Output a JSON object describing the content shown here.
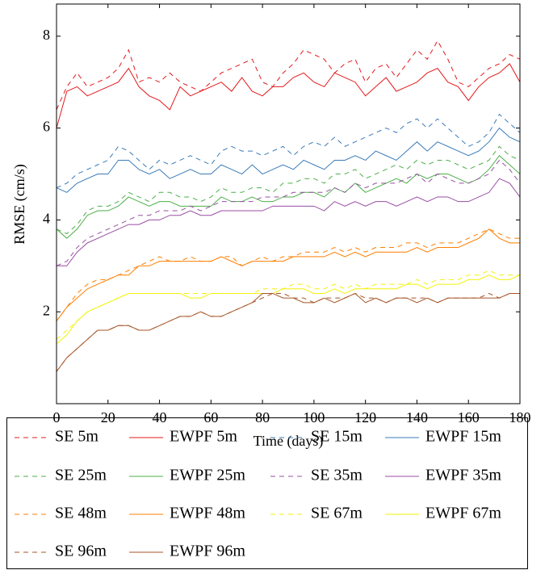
{
  "chart_data": {
    "type": "line",
    "x_label": "Time (days)",
    "y_label": "RMSE (cm/s)",
    "xlim": [
      0,
      180
    ],
    "ylim": [
      0,
      8.7
    ],
    "xticks": [
      0,
      20,
      40,
      60,
      80,
      100,
      120,
      140,
      160,
      180
    ],
    "yticks": [
      2,
      4,
      6,
      8
    ],
    "legend_columns": 4,
    "x": [
      0,
      4,
      8,
      12,
      16,
      20,
      24,
      28,
      32,
      36,
      40,
      44,
      48,
      52,
      56,
      60,
      64,
      68,
      72,
      76,
      80,
      84,
      88,
      92,
      96,
      100,
      104,
      108,
      112,
      116,
      120,
      124,
      128,
      132,
      136,
      140,
      144,
      148,
      152,
      156,
      160,
      164,
      168,
      172,
      176,
      180
    ],
    "series": [
      {
        "name": "SE 5m",
        "color": "#e31a1c",
        "dash": "dashed",
        "values": [
          6.4,
          6.9,
          7.2,
          6.9,
          7.0,
          7.1,
          7.3,
          7.7,
          7.0,
          7.1,
          7.0,
          7.2,
          7.0,
          6.9,
          6.8,
          7.0,
          7.2,
          7.3,
          7.4,
          7.5,
          7.0,
          6.9,
          7.2,
          7.4,
          7.7,
          7.6,
          7.5,
          7.2,
          7.4,
          7.5,
          7.0,
          7.3,
          7.4,
          7.1,
          7.4,
          7.7,
          7.5,
          7.9,
          7.5,
          7.0,
          6.9,
          7.1,
          7.3,
          7.4,
          7.6,
          7.5
        ]
      },
      {
        "name": "EWPF 5m",
        "color": "#e31a1c",
        "dash": "solid",
        "values": [
          6.0,
          6.8,
          6.9,
          6.7,
          6.8,
          6.9,
          7.0,
          7.3,
          6.9,
          6.7,
          6.6,
          6.4,
          6.9,
          6.7,
          6.8,
          6.9,
          7.0,
          6.8,
          7.1,
          6.8,
          6.7,
          6.9,
          6.9,
          7.1,
          7.2,
          7.0,
          6.9,
          7.2,
          7.1,
          7.0,
          6.7,
          6.9,
          7.1,
          6.8,
          6.9,
          7.0,
          7.2,
          7.3,
          7.0,
          6.9,
          6.6,
          6.9,
          7.1,
          7.2,
          7.4,
          7.0
        ]
      },
      {
        "name": "SE 15m",
        "color": "#3a7bb8",
        "dash": "dashed",
        "values": [
          4.7,
          4.8,
          5.0,
          5.1,
          5.2,
          5.3,
          5.6,
          5.5,
          5.3,
          5.1,
          5.3,
          5.2,
          5.3,
          5.4,
          5.3,
          5.2,
          5.5,
          5.6,
          5.5,
          5.5,
          5.4,
          5.5,
          5.6,
          5.4,
          5.6,
          5.7,
          5.6,
          5.8,
          5.6,
          5.7,
          5.8,
          5.9,
          6.0,
          5.9,
          6.1,
          6.2,
          6.0,
          6.2,
          6.0,
          5.8,
          5.6,
          5.7,
          5.9,
          6.3,
          6.1,
          5.9
        ]
      },
      {
        "name": "EWPF 15m",
        "color": "#3a7bb8",
        "dash": "solid",
        "values": [
          4.7,
          4.6,
          4.8,
          4.9,
          5.0,
          5.0,
          5.3,
          5.3,
          5.1,
          5.0,
          5.1,
          4.9,
          5.0,
          5.1,
          5.0,
          5.0,
          5.2,
          5.1,
          5.0,
          5.2,
          5.0,
          5.1,
          5.2,
          5.1,
          5.3,
          5.2,
          5.1,
          5.3,
          5.3,
          5.4,
          5.3,
          5.5,
          5.4,
          5.3,
          5.5,
          5.7,
          5.5,
          5.7,
          5.6,
          5.5,
          5.4,
          5.5,
          5.7,
          6.0,
          5.8,
          5.7
        ]
      },
      {
        "name": "SE 25m",
        "color": "#4daf4a",
        "dash": "dashed",
        "values": [
          3.8,
          3.7,
          3.9,
          4.2,
          4.3,
          4.3,
          4.4,
          4.6,
          4.5,
          4.4,
          4.6,
          4.6,
          4.5,
          4.5,
          4.4,
          4.5,
          4.7,
          4.6,
          4.6,
          4.7,
          4.7,
          4.6,
          4.8,
          4.8,
          4.9,
          4.9,
          4.8,
          5.0,
          5.0,
          5.1,
          4.9,
          5.0,
          5.1,
          5.2,
          5.1,
          5.3,
          5.2,
          5.3,
          5.3,
          5.2,
          5.1,
          5.2,
          5.3,
          5.6,
          5.4,
          5.3
        ]
      },
      {
        "name": "EWPF 25m",
        "color": "#4daf4a",
        "dash": "solid",
        "values": [
          3.8,
          3.6,
          3.8,
          4.1,
          4.2,
          4.2,
          4.3,
          4.5,
          4.4,
          4.3,
          4.4,
          4.4,
          4.3,
          4.3,
          4.3,
          4.3,
          4.5,
          4.4,
          4.4,
          4.5,
          4.4,
          4.4,
          4.5,
          4.5,
          4.6,
          4.6,
          4.5,
          4.7,
          4.6,
          4.8,
          4.6,
          4.7,
          4.8,
          4.9,
          4.8,
          5.0,
          4.9,
          5.0,
          5.0,
          4.9,
          4.8,
          4.9,
          5.1,
          5.4,
          5.2,
          5.0
        ]
      },
      {
        "name": "SE 35m",
        "color": "#984ea3",
        "dash": "dashed",
        "values": [
          3.0,
          3.1,
          3.4,
          3.6,
          3.7,
          3.8,
          3.9,
          4.0,
          4.1,
          4.1,
          4.2,
          4.2,
          4.2,
          4.3,
          4.2,
          4.3,
          4.4,
          4.4,
          4.4,
          4.4,
          4.5,
          4.5,
          4.5,
          4.6,
          4.6,
          4.6,
          4.6,
          4.7,
          4.6,
          4.8,
          4.7,
          4.8,
          4.8,
          4.8,
          4.9,
          5.0,
          4.8,
          5.0,
          4.9,
          4.8,
          4.8,
          4.9,
          5.0,
          5.3,
          5.1,
          4.8
        ]
      },
      {
        "name": "EWPF 35m",
        "color": "#984ea3",
        "dash": "solid",
        "values": [
          3.0,
          3.0,
          3.3,
          3.5,
          3.6,
          3.7,
          3.8,
          3.9,
          3.9,
          4.0,
          4.0,
          4.1,
          4.1,
          4.2,
          4.1,
          4.1,
          4.2,
          4.2,
          4.2,
          4.2,
          4.2,
          4.3,
          4.3,
          4.3,
          4.3,
          4.3,
          4.2,
          4.4,
          4.3,
          4.4,
          4.3,
          4.4,
          4.4,
          4.3,
          4.4,
          4.5,
          4.4,
          4.5,
          4.5,
          4.4,
          4.4,
          4.5,
          4.6,
          4.9,
          4.8,
          4.5
        ]
      },
      {
        "name": "SE 48m",
        "color": "#ff7f00",
        "dash": "dashed",
        "values": [
          1.8,
          2.1,
          2.4,
          2.6,
          2.7,
          2.7,
          2.8,
          2.9,
          3.0,
          3.1,
          3.2,
          3.1,
          3.1,
          3.2,
          3.1,
          3.1,
          3.2,
          3.2,
          3.0,
          3.1,
          3.2,
          3.1,
          3.2,
          3.2,
          3.3,
          3.3,
          3.3,
          3.4,
          3.3,
          3.4,
          3.3,
          3.4,
          3.4,
          3.4,
          3.5,
          3.5,
          3.4,
          3.5,
          3.5,
          3.5,
          3.6,
          3.7,
          3.8,
          3.7,
          3.6,
          3.6
        ]
      },
      {
        "name": "EWPF 48m",
        "color": "#ff7f00",
        "dash": "solid",
        "values": [
          1.8,
          2.1,
          2.3,
          2.5,
          2.6,
          2.7,
          2.8,
          2.8,
          3.0,
          3.0,
          3.1,
          3.1,
          3.1,
          3.1,
          3.1,
          3.1,
          3.2,
          3.1,
          3.0,
          3.1,
          3.1,
          3.1,
          3.1,
          3.2,
          3.2,
          3.2,
          3.2,
          3.3,
          3.2,
          3.3,
          3.2,
          3.3,
          3.3,
          3.3,
          3.3,
          3.4,
          3.3,
          3.4,
          3.4,
          3.4,
          3.5,
          3.6,
          3.8,
          3.6,
          3.5,
          3.5
        ]
      },
      {
        "name": "SE 67m",
        "color": "#f2f20a",
        "dash": "dashed",
        "values": [
          1.4,
          1.6,
          1.8,
          2.0,
          2.1,
          2.2,
          2.3,
          2.4,
          2.4,
          2.4,
          2.4,
          2.4,
          2.4,
          2.4,
          2.4,
          2.4,
          2.4,
          2.4,
          2.4,
          2.4,
          2.5,
          2.5,
          2.5,
          2.6,
          2.6,
          2.5,
          2.5,
          2.6,
          2.5,
          2.6,
          2.5,
          2.6,
          2.6,
          2.6,
          2.6,
          2.7,
          2.6,
          2.7,
          2.7,
          2.7,
          2.8,
          2.8,
          2.9,
          2.8,
          2.8,
          2.8
        ]
      },
      {
        "name": "EWPF 67m",
        "color": "#f2f20a",
        "dash": "solid",
        "values": [
          1.3,
          1.5,
          1.8,
          2.0,
          2.1,
          2.2,
          2.3,
          2.4,
          2.4,
          2.4,
          2.4,
          2.4,
          2.4,
          2.3,
          2.3,
          2.4,
          2.4,
          2.4,
          2.4,
          2.4,
          2.4,
          2.4,
          2.5,
          2.5,
          2.5,
          2.4,
          2.4,
          2.5,
          2.4,
          2.5,
          2.5,
          2.5,
          2.5,
          2.5,
          2.6,
          2.6,
          2.5,
          2.6,
          2.6,
          2.6,
          2.7,
          2.7,
          2.8,
          2.7,
          2.7,
          2.8
        ]
      },
      {
        "name": "SE 96m",
        "color": "#a65628",
        "dash": "dashed",
        "values": [
          0.7,
          1.0,
          1.2,
          1.4,
          1.6,
          1.6,
          1.7,
          1.7,
          1.6,
          1.6,
          1.7,
          1.8,
          1.9,
          1.9,
          2.0,
          1.9,
          1.9,
          2.0,
          2.1,
          2.2,
          2.3,
          2.4,
          2.4,
          2.3,
          2.3,
          2.2,
          2.3,
          2.3,
          2.3,
          2.4,
          2.3,
          2.3,
          2.2,
          2.3,
          2.3,
          2.3,
          2.3,
          2.2,
          2.3,
          2.3,
          2.3,
          2.3,
          2.4,
          2.3,
          2.4,
          2.4
        ]
      },
      {
        "name": "EWPF 96m",
        "color": "#a65628",
        "dash": "solid",
        "values": [
          0.7,
          1.0,
          1.2,
          1.4,
          1.6,
          1.6,
          1.7,
          1.7,
          1.6,
          1.6,
          1.7,
          1.8,
          1.9,
          1.9,
          2.0,
          1.9,
          1.9,
          2.0,
          2.1,
          2.2,
          2.4,
          2.4,
          2.3,
          2.3,
          2.2,
          2.2,
          2.3,
          2.2,
          2.3,
          2.4,
          2.2,
          2.3,
          2.2,
          2.3,
          2.3,
          2.2,
          2.3,
          2.2,
          2.3,
          2.3,
          2.3,
          2.3,
          2.3,
          2.3,
          2.4,
          2.4
        ]
      }
    ]
  }
}
